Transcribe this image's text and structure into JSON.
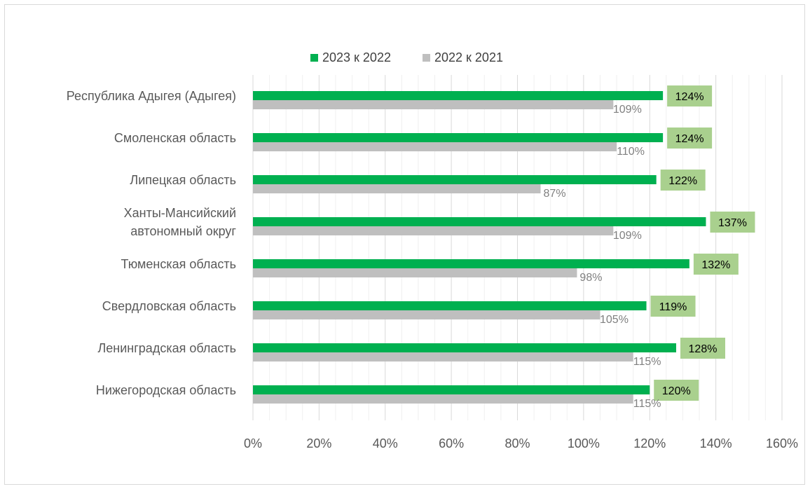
{
  "chart_data": {
    "type": "bar",
    "orientation": "horizontal",
    "categories": [
      "Республика Адыгея (Адыгея)",
      "Смоленская область",
      "Липецкая область",
      "Ханты-Мансийский автономный округ",
      "Тюменская область",
      "Свердловская область",
      "Ленинградская область",
      "Нижегородская область"
    ],
    "category_lines": [
      [
        "Республика Адыгея (Адыгея)"
      ],
      [
        "Смоленская область"
      ],
      [
        "Липецкая область"
      ],
      [
        "Ханты-Мансийский",
        "автономный округ"
      ],
      [
        "Тюменская область"
      ],
      [
        "Свердловская область"
      ],
      [
        "Ленинградская область"
      ],
      [
        "Нижегородская область"
      ]
    ],
    "series": [
      {
        "name": "2023 к 2022",
        "color": "#00b050",
        "label_bg": "#a9d08e",
        "values": [
          124,
          124,
          122,
          137,
          132,
          119,
          128,
          120
        ],
        "labels": [
          "124%",
          "124%",
          "122%",
          "137%",
          "132%",
          "119%",
          "128%",
          "120%"
        ]
      },
      {
        "name": "2022 к 2021",
        "color": "#bfbfbf",
        "values": [
          109,
          110,
          87,
          109,
          98,
          105,
          115,
          115
        ],
        "labels": [
          "109%",
          "110%",
          "87%",
          "109%",
          "98%",
          "105%",
          "115%",
          "115%"
        ]
      }
    ],
    "xlim": [
      0,
      160
    ],
    "xticks": [
      0,
      20,
      40,
      60,
      80,
      100,
      120,
      140,
      160
    ],
    "xtick_labels": [
      "0%",
      "20%",
      "40%",
      "60%",
      "80%",
      "100%",
      "120%",
      "140%",
      "160%"
    ],
    "grid": "vertical",
    "legend": "top"
  }
}
